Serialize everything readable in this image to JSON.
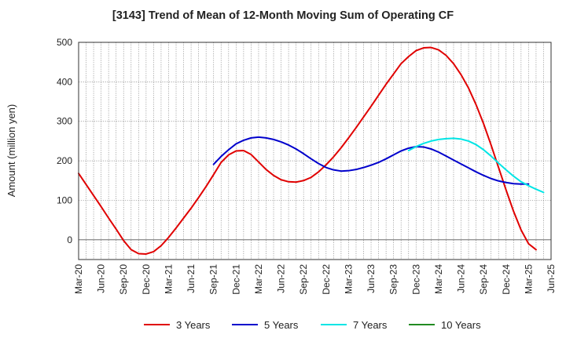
{
  "chart_data": {
    "type": "line",
    "title": "[3143]  Trend of Mean of 12-Month Moving Sum of Operating CF",
    "xlabel": "",
    "ylabel": "Amount (million yen)",
    "ylim": [
      -50,
      500
    ],
    "yticks": [
      0,
      100,
      200,
      300,
      400,
      500
    ],
    "x_tick_labels": [
      "Mar-20",
      "Jun-20",
      "Sep-20",
      "Dec-20",
      "Mar-21",
      "Jun-21",
      "Sep-21",
      "Dec-21",
      "Mar-22",
      "Jun-22",
      "Sep-22",
      "Dec-22",
      "Mar-23",
      "Jun-23",
      "Sep-23",
      "Dec-23",
      "Mar-24",
      "Jun-24",
      "Sep-24",
      "Dec-24",
      "Mar-25",
      "Jun-25"
    ],
    "grid": true,
    "legend_position": "bottom",
    "series": [
      {
        "name": "3 Years",
        "color": "#e00000",
        "start_index": 0,
        "values": [
          168,
          140,
          112,
          84,
          55,
          27,
          -2,
          -25,
          -35,
          -36,
          -30,
          -15,
          6,
          30,
          55,
          80,
          107,
          135,
          165,
          196,
          215,
          225,
          226,
          216,
          197,
          178,
          163,
          152,
          147,
          146,
          150,
          158,
          172,
          190,
          210,
          233,
          258,
          284,
          311,
          338,
          366,
          394,
          420,
          446,
          464,
          479,
          486,
          487,
          481,
          467,
          446,
          418,
          384,
          342,
          294,
          240,
          183,
          126,
          72,
          25,
          -10,
          -25
        ]
      },
      {
        "name": "5 Years",
        "color": "#0000cc",
        "start_index": 18,
        "values": [
          191,
          211,
          228,
          243,
          252,
          258,
          260,
          258,
          254,
          248,
          240,
          230,
          218,
          205,
          193,
          183,
          177,
          174,
          175,
          178,
          183,
          189,
          196,
          205,
          215,
          225,
          232,
          236,
          235,
          230,
          222,
          212,
          202,
          192,
          182,
          172,
          163,
          155,
          149,
          145,
          142,
          141,
          141
        ]
      },
      {
        "name": "7 Years",
        "color": "#00e5e5",
        "start_index": 44,
        "values": [
          226,
          236,
          244,
          250,
          254,
          256,
          257,
          255,
          250,
          241,
          228,
          212,
          194,
          177,
          161,
          147,
          137,
          128,
          120
        ]
      },
      {
        "name": "10 Years",
        "color": "#228b22",
        "start_index": 0,
        "values": []
      }
    ]
  }
}
